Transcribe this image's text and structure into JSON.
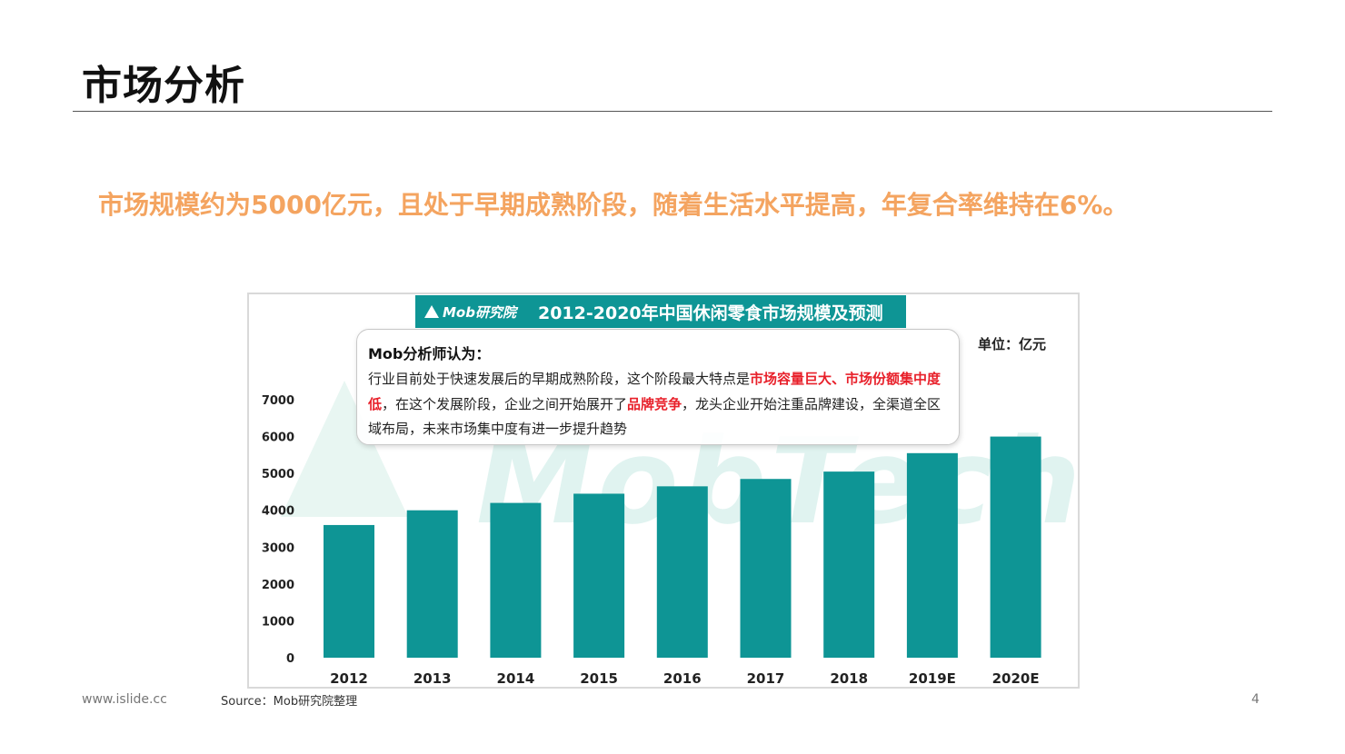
{
  "slide": {
    "title": "市场分析",
    "headline": "市场规模约为5000亿元，且处于早期成熟阶段，随着生活水平提高，年复合率维持在6%。",
    "footer_url": "www.islide.cc",
    "page_number": "4"
  },
  "chart_header": {
    "brand": "Mob研究院",
    "title": "2012-2020年中国休闲零食市场规模及预测"
  },
  "callout": {
    "heading": "Mob分析师认为：",
    "body_parts": [
      {
        "text": "行业目前处于快速发展后的早期成熟阶段，这个阶段最大特点是",
        "highlight": false
      },
      {
        "text": "市场容量巨大、市场份额集中度低",
        "highlight": true
      },
      {
        "text": "，在这个发展阶段，企业之间开始展开了",
        "highlight": false
      },
      {
        "text": "品牌竞争",
        "highlight": true
      },
      {
        "text": "，龙头企业开始注重品牌建设，全渠道全区域布局，未来市场集中度有进一步提升趋势",
        "highlight": false
      }
    ]
  },
  "watermark": "MobTech",
  "source": "Source：Mob研究院整理",
  "colors": {
    "bar": "#0e9595",
    "headline": "#f4a460",
    "highlight": "#e8202a"
  },
  "chart_data": {
    "type": "bar",
    "title": "2012-2020年中国休闲零食市场规模及预测",
    "unit_label": "单位：亿元",
    "categories": [
      "2012",
      "2013",
      "2014",
      "2015",
      "2016",
      "2017",
      "2018",
      "2019E",
      "2020E"
    ],
    "values": [
      3600,
      4000,
      4200,
      4450,
      4650,
      4850,
      5050,
      5550,
      6000
    ],
    "ylim": [
      0,
      7000
    ],
    "y_ticks": [
      "0",
      "1000",
      "2000",
      "3000",
      "4000",
      "5000",
      "6000",
      "7000"
    ],
    "grid": false,
    "legend": "none"
  }
}
